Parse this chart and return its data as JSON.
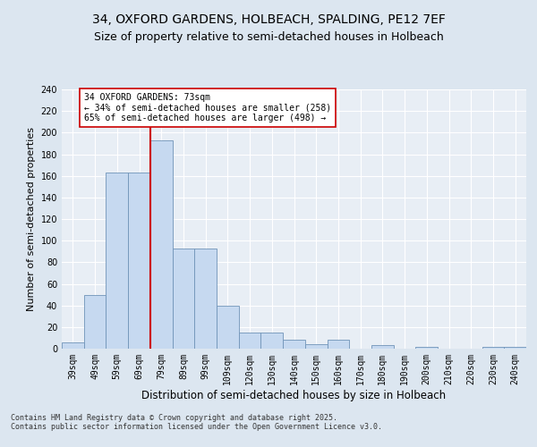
{
  "title1": "34, OXFORD GARDENS, HOLBEACH, SPALDING, PE12 7EF",
  "title2": "Size of property relative to semi-detached houses in Holbeach",
  "xlabel": "Distribution of semi-detached houses by size in Holbeach",
  "ylabel": "Number of semi-detached properties",
  "categories": [
    "39sqm",
    "49sqm",
    "59sqm",
    "69sqm",
    "79sqm",
    "89sqm",
    "99sqm",
    "109sqm",
    "120sqm",
    "130sqm",
    "140sqm",
    "150sqm",
    "160sqm",
    "170sqm",
    "180sqm",
    "190sqm",
    "200sqm",
    "210sqm",
    "220sqm",
    "230sqm",
    "240sqm"
  ],
  "values": [
    6,
    50,
    163,
    163,
    193,
    93,
    93,
    40,
    15,
    15,
    8,
    4,
    8,
    0,
    3,
    0,
    2,
    0,
    0,
    2,
    2
  ],
  "bar_color": "#c6d9f0",
  "bar_edge_color": "#7094b8",
  "vline_x_index": 4,
  "vline_color": "#cc0000",
  "annotation_text": "34 OXFORD GARDENS: 73sqm\n← 34% of semi-detached houses are smaller (258)\n65% of semi-detached houses are larger (498) →",
  "annotation_box_color": "#ffffff",
  "annotation_box_edge": "#cc0000",
  "ylim": [
    0,
    240
  ],
  "yticks": [
    0,
    20,
    40,
    60,
    80,
    100,
    120,
    140,
    160,
    180,
    200,
    220,
    240
  ],
  "bg_color": "#e8eef5",
  "fig_bg_color": "#dce6f0",
  "grid_color": "#ffffff",
  "footer": "Contains HM Land Registry data © Crown copyright and database right 2025.\nContains public sector information licensed under the Open Government Licence v3.0.",
  "title1_fontsize": 10,
  "title2_fontsize": 9,
  "xlabel_fontsize": 8.5,
  "ylabel_fontsize": 8,
  "annotation_fontsize": 7,
  "footer_fontsize": 6,
  "tick_fontsize": 7
}
